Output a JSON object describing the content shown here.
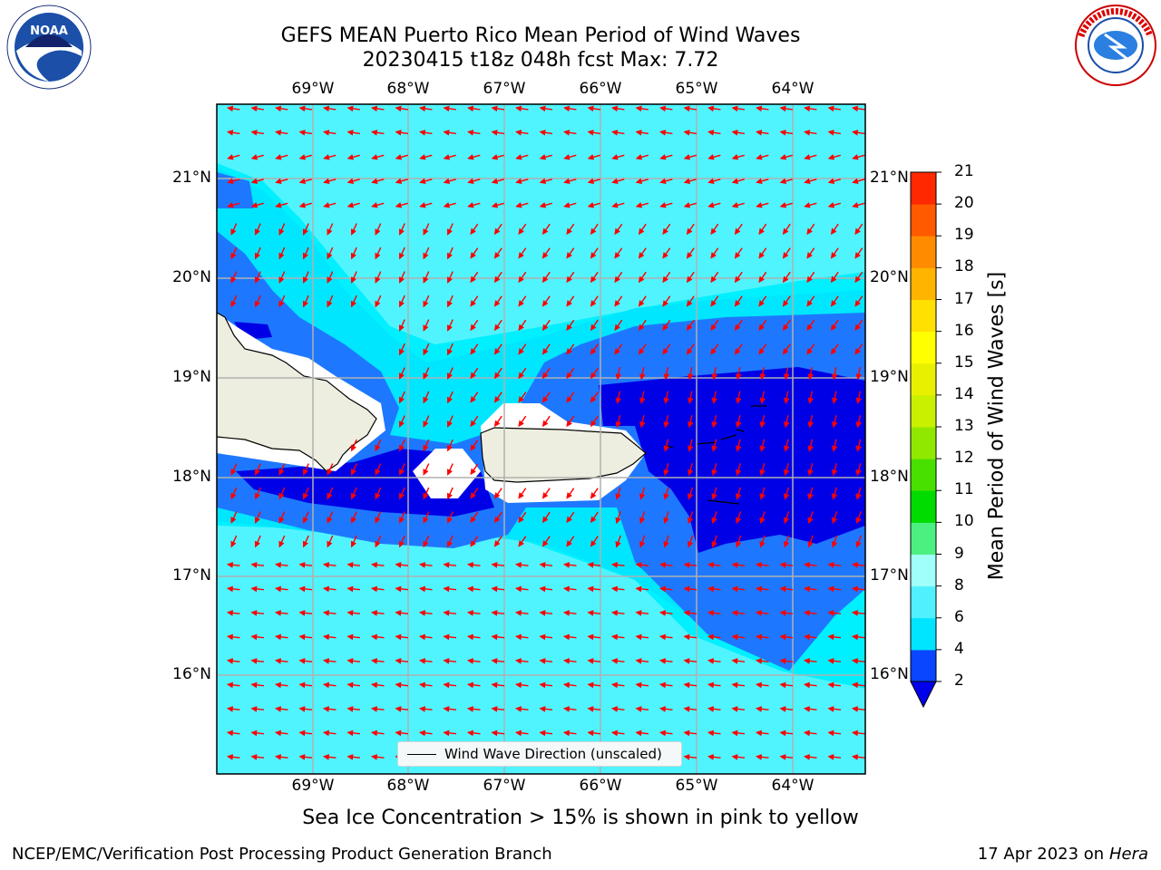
{
  "header": {
    "title_line1": "GEFS MEAN Puerto Rico Mean Period of Wind Waves",
    "title_line2": "20230415 t18z 048h fcst   Max: 7.72"
  },
  "map": {
    "region": "Puerto Rico",
    "lon_ticks": [
      "69°W",
      "68°W",
      "67°W",
      "66°W",
      "65°W",
      "64°W"
    ],
    "lat_ticks": [
      "21°N",
      "20°N",
      "19°N",
      "18°N",
      "17°N",
      "16°N"
    ],
    "colors": {
      "ocean_light": "#00ffff",
      "band_4_6": "#00e6ff",
      "band_2_4": "#1e78ff",
      "below_2": "#0000e6",
      "land": "#eeeee0",
      "gridline": "#b0b0b0",
      "arrow": "#ff0000"
    },
    "legend_text": "Wind Wave Direction (unscaled)"
  },
  "colorbar": {
    "title": "Mean Period of Wind Waves [s]",
    "ticks": [
      "2",
      "4",
      "6",
      "8",
      "9",
      "10",
      "11",
      "12",
      "13",
      "14",
      "15",
      "16",
      "17",
      "18",
      "19",
      "20",
      "21"
    ],
    "colors": [
      "#0a46ff",
      "#00e5ff",
      "#50f0ff",
      "#a0fff8",
      "#4cf080",
      "#00dc00",
      "#48e000",
      "#90e800",
      "#c8f000",
      "#e8f000",
      "#ffff00",
      "#ffe000",
      "#ffb400",
      "#ff8c00",
      "#ff5a00",
      "#ff2800",
      "#ff0000"
    ],
    "under_color": "#0000ee"
  },
  "subtitle": "Sea Ice Concentration > 15% is shown in pink to yellow",
  "footer": {
    "left": "NCEP/EMC/Verification Post Processing Product Generation Branch",
    "right_prefix": "17 Apr 2023 on ",
    "right_host": "Hera"
  },
  "logos": {
    "left_name": "noaa-logo",
    "left_text": "NOAA",
    "right_name": "nws-logo",
    "right_text": "NATIONAL WEATHER SERVICE"
  }
}
